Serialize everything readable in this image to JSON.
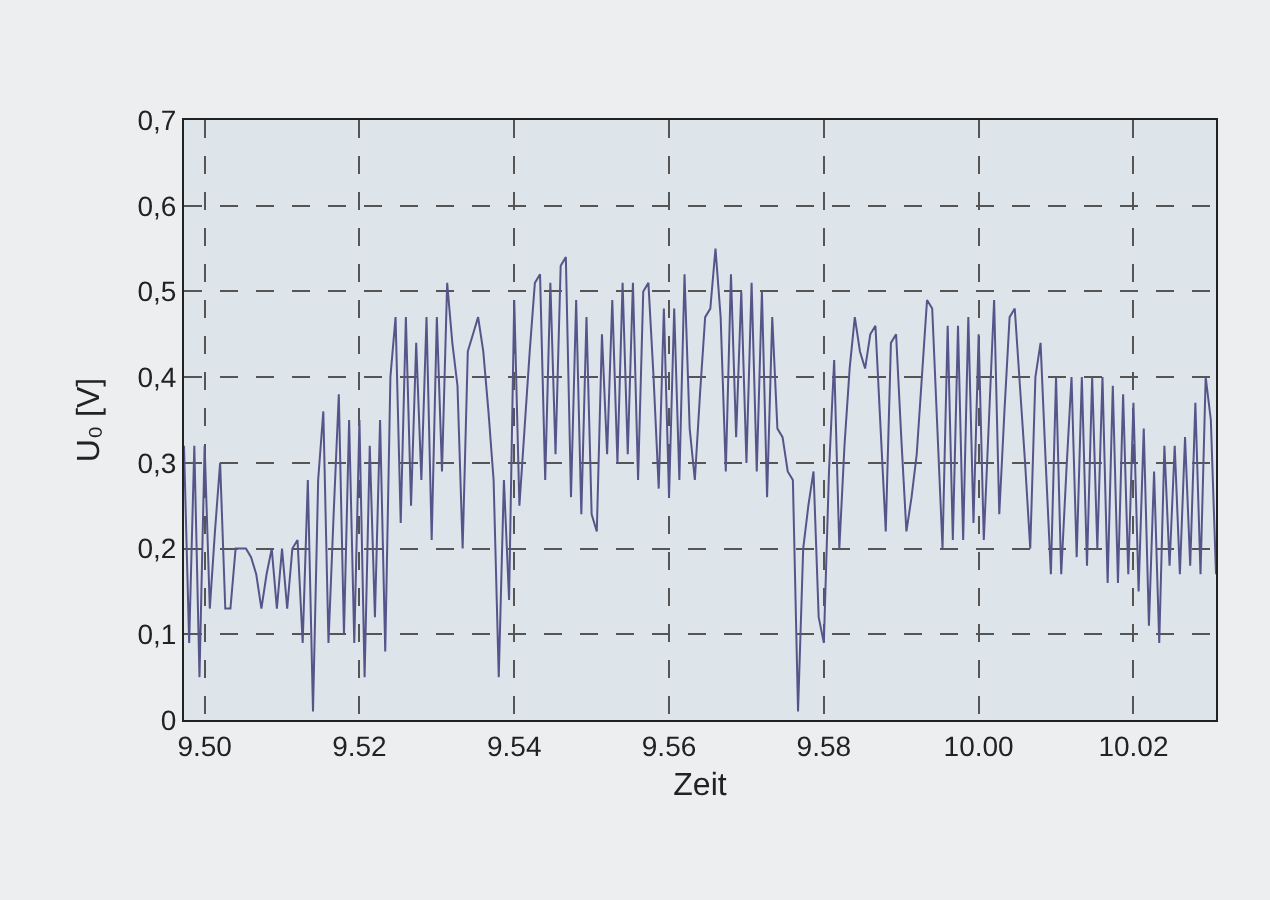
{
  "chart_data": {
    "type": "line",
    "xlabel": "Zeit",
    "ylabel": "U₀ [V]",
    "grid": true,
    "line_style": "solid",
    "categories": [
      null,
      null,
      null,
      null,
      "9.50",
      null,
      null,
      null,
      null,
      null,
      null,
      null,
      null,
      null,
      null,
      null,
      null,
      null,
      null,
      null,
      null,
      null,
      null,
      null,
      null,
      null,
      null,
      null,
      null,
      null,
      null,
      null,
      null,
      null,
      "9.52",
      null,
      null,
      null,
      null,
      null,
      null,
      null,
      null,
      null,
      null,
      null,
      null,
      null,
      null,
      null,
      null,
      null,
      null,
      null,
      null,
      null,
      null,
      null,
      null,
      null,
      null,
      null,
      null,
      null,
      "9.54",
      null,
      null,
      null,
      null,
      null,
      null,
      null,
      null,
      null,
      null,
      null,
      null,
      null,
      null,
      null,
      null,
      null,
      null,
      null,
      null,
      null,
      null,
      null,
      null,
      null,
      null,
      null,
      null,
      null,
      "9.56",
      null,
      null,
      null,
      null,
      null,
      null,
      null,
      null,
      null,
      null,
      null,
      null,
      null,
      null,
      null,
      null,
      null,
      null,
      null,
      null,
      null,
      null,
      null,
      null,
      null,
      null,
      null,
      null,
      null,
      "9.58",
      null,
      null,
      null,
      null,
      null,
      null,
      null,
      null,
      null,
      null,
      null,
      null,
      null,
      null,
      null,
      null,
      null,
      null,
      null,
      null,
      null,
      null,
      null,
      null,
      null,
      null,
      null,
      null,
      null,
      "10.00",
      null,
      null,
      null,
      null,
      null,
      null,
      null,
      null,
      null,
      null,
      null,
      null,
      null,
      null,
      null,
      null,
      null,
      null,
      null,
      null,
      null,
      null,
      null,
      null,
      null,
      null,
      null,
      null,
      null,
      "10.02",
      null,
      null,
      null,
      null,
      null,
      null,
      null,
      null,
      null,
      null,
      null,
      null,
      null,
      null,
      null,
      null
    ],
    "ylim": [
      0,
      0.7
    ],
    "yticks": [
      0,
      {
        "value": 0.1,
        "label": "0,1"
      },
      {
        "value": 0.2,
        "label": "0,2"
      },
      {
        "value": 0.3,
        "label": "0,3"
      },
      {
        "value": 0.4,
        "label": "0,4"
      },
      {
        "value": 0.5,
        "label": "0,5"
      },
      {
        "value": 0.6,
        "label": "0,6"
      },
      {
        "value": 0.7,
        "label": "0,7"
      }
    ],
    "series": [
      {
        "color": "#55558a",
        "values": [
          0.32,
          0.09,
          0.32,
          0.05,
          0.32,
          0.13,
          0.22,
          0.3,
          0.13,
          0.13,
          0.2,
          0.2,
          0.2,
          0.19,
          0.17,
          0.13,
          0.17,
          0.2,
          0.13,
          0.2,
          0.13,
          0.2,
          0.21,
          0.09,
          0.28,
          0.01,
          0.28,
          0.36,
          0.09,
          0.24,
          0.38,
          0.1,
          0.35,
          0.09,
          0.35,
          0.05,
          0.32,
          0.12,
          0.35,
          0.08,
          0.4,
          0.47,
          0.23,
          0.47,
          0.25,
          0.44,
          0.28,
          0.47,
          0.21,
          0.47,
          0.29,
          0.51,
          0.44,
          0.39,
          0.2,
          0.43,
          0.45,
          0.47,
          0.43,
          0.36,
          0.28,
          0.05,
          0.28,
          0.14,
          0.49,
          0.25,
          0.34,
          0.43,
          0.51,
          0.52,
          0.28,
          0.51,
          0.31,
          0.53,
          0.54,
          0.26,
          0.49,
          0.24,
          0.47,
          0.24,
          0.22,
          0.45,
          0.31,
          0.49,
          0.3,
          0.51,
          0.31,
          0.51,
          0.28,
          0.5,
          0.51,
          0.4,
          0.27,
          0.48,
          0.26,
          0.48,
          0.28,
          0.52,
          0.34,
          0.28,
          0.38,
          0.47,
          0.48,
          0.55,
          0.47,
          0.29,
          0.52,
          0.33,
          0.5,
          0.3,
          0.51,
          0.29,
          0.5,
          0.26,
          0.47,
          0.34,
          0.33,
          0.29,
          0.28,
          0.01,
          0.2,
          0.25,
          0.29,
          0.12,
          0.09,
          0.29,
          0.42,
          0.2,
          0.32,
          0.41,
          0.47,
          0.43,
          0.41,
          0.45,
          0.46,
          0.34,
          0.22,
          0.44,
          0.45,
          0.33,
          0.22,
          0.26,
          0.31,
          0.4,
          0.49,
          0.48,
          0.34,
          0.2,
          0.46,
          0.21,
          0.46,
          0.21,
          0.47,
          0.23,
          0.45,
          0.21,
          0.35,
          0.49,
          0.24,
          0.36,
          0.47,
          0.48,
          0.39,
          0.3,
          0.2,
          0.4,
          0.44,
          0.3,
          0.17,
          0.4,
          0.17,
          0.29,
          0.4,
          0.19,
          0.4,
          0.18,
          0.4,
          0.2,
          0.4,
          0.16,
          0.39,
          0.16,
          0.38,
          0.17,
          0.37,
          0.15,
          0.34,
          0.11,
          0.29,
          0.09,
          0.32,
          0.18,
          0.32,
          0.17,
          0.33,
          0.18,
          0.37,
          0.17,
          0.4,
          0.35,
          0.17
        ]
      }
    ]
  }
}
